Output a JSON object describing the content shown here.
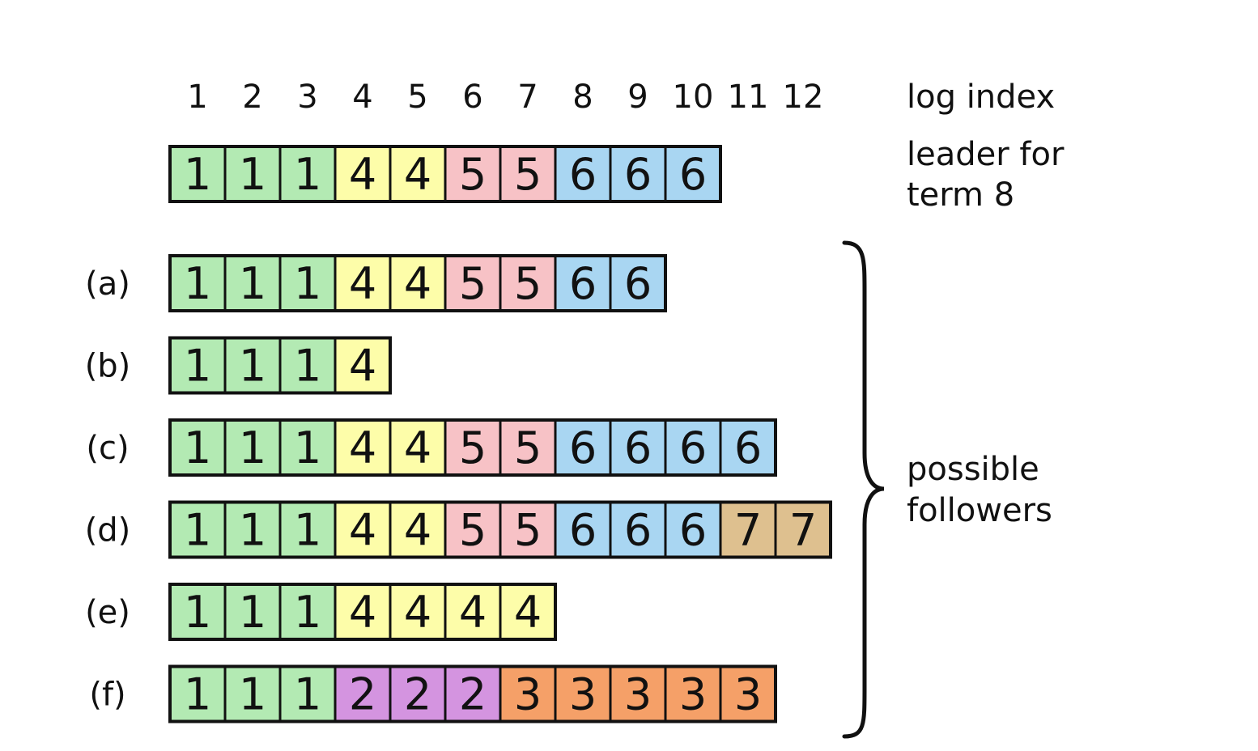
{
  "log_index_label": "log index",
  "indices": [
    "1",
    "2",
    "3",
    "4",
    "5",
    "6",
    "7",
    "8",
    "9",
    "10",
    "11",
    "12"
  ],
  "leader_label_line1": "leader for",
  "leader_label_line2": "term 8",
  "followers_label_line1": "possible",
  "followers_label_line2": "followers",
  "term_colors": {
    "1": "#b3eab3",
    "2": "#d494e0",
    "3": "#f5a068",
    "4": "#fdfda9",
    "5": "#f7c2c6",
    "6": "#a9d6f2",
    "7": "#dec08f"
  },
  "leader": {
    "terms": [
      1,
      1,
      1,
      4,
      4,
      5,
      5,
      6,
      6,
      6
    ]
  },
  "followers": [
    {
      "label": "(a)",
      "terms": [
        1,
        1,
        1,
        4,
        4,
        5,
        5,
        6,
        6
      ]
    },
    {
      "label": "(b)",
      "terms": [
        1,
        1,
        1,
        4
      ]
    },
    {
      "label": "(c)",
      "terms": [
        1,
        1,
        1,
        4,
        4,
        5,
        5,
        6,
        6,
        6,
        6
      ]
    },
    {
      "label": "(d)",
      "terms": [
        1,
        1,
        1,
        4,
        4,
        5,
        5,
        6,
        6,
        6,
        7,
        7
      ]
    },
    {
      "label": "(e)",
      "terms": [
        1,
        1,
        1,
        4,
        4,
        4,
        4
      ]
    },
    {
      "label": "(f)",
      "terms": [
        1,
        1,
        1,
        2,
        2,
        2,
        3,
        3,
        3,
        3,
        3
      ]
    }
  ]
}
